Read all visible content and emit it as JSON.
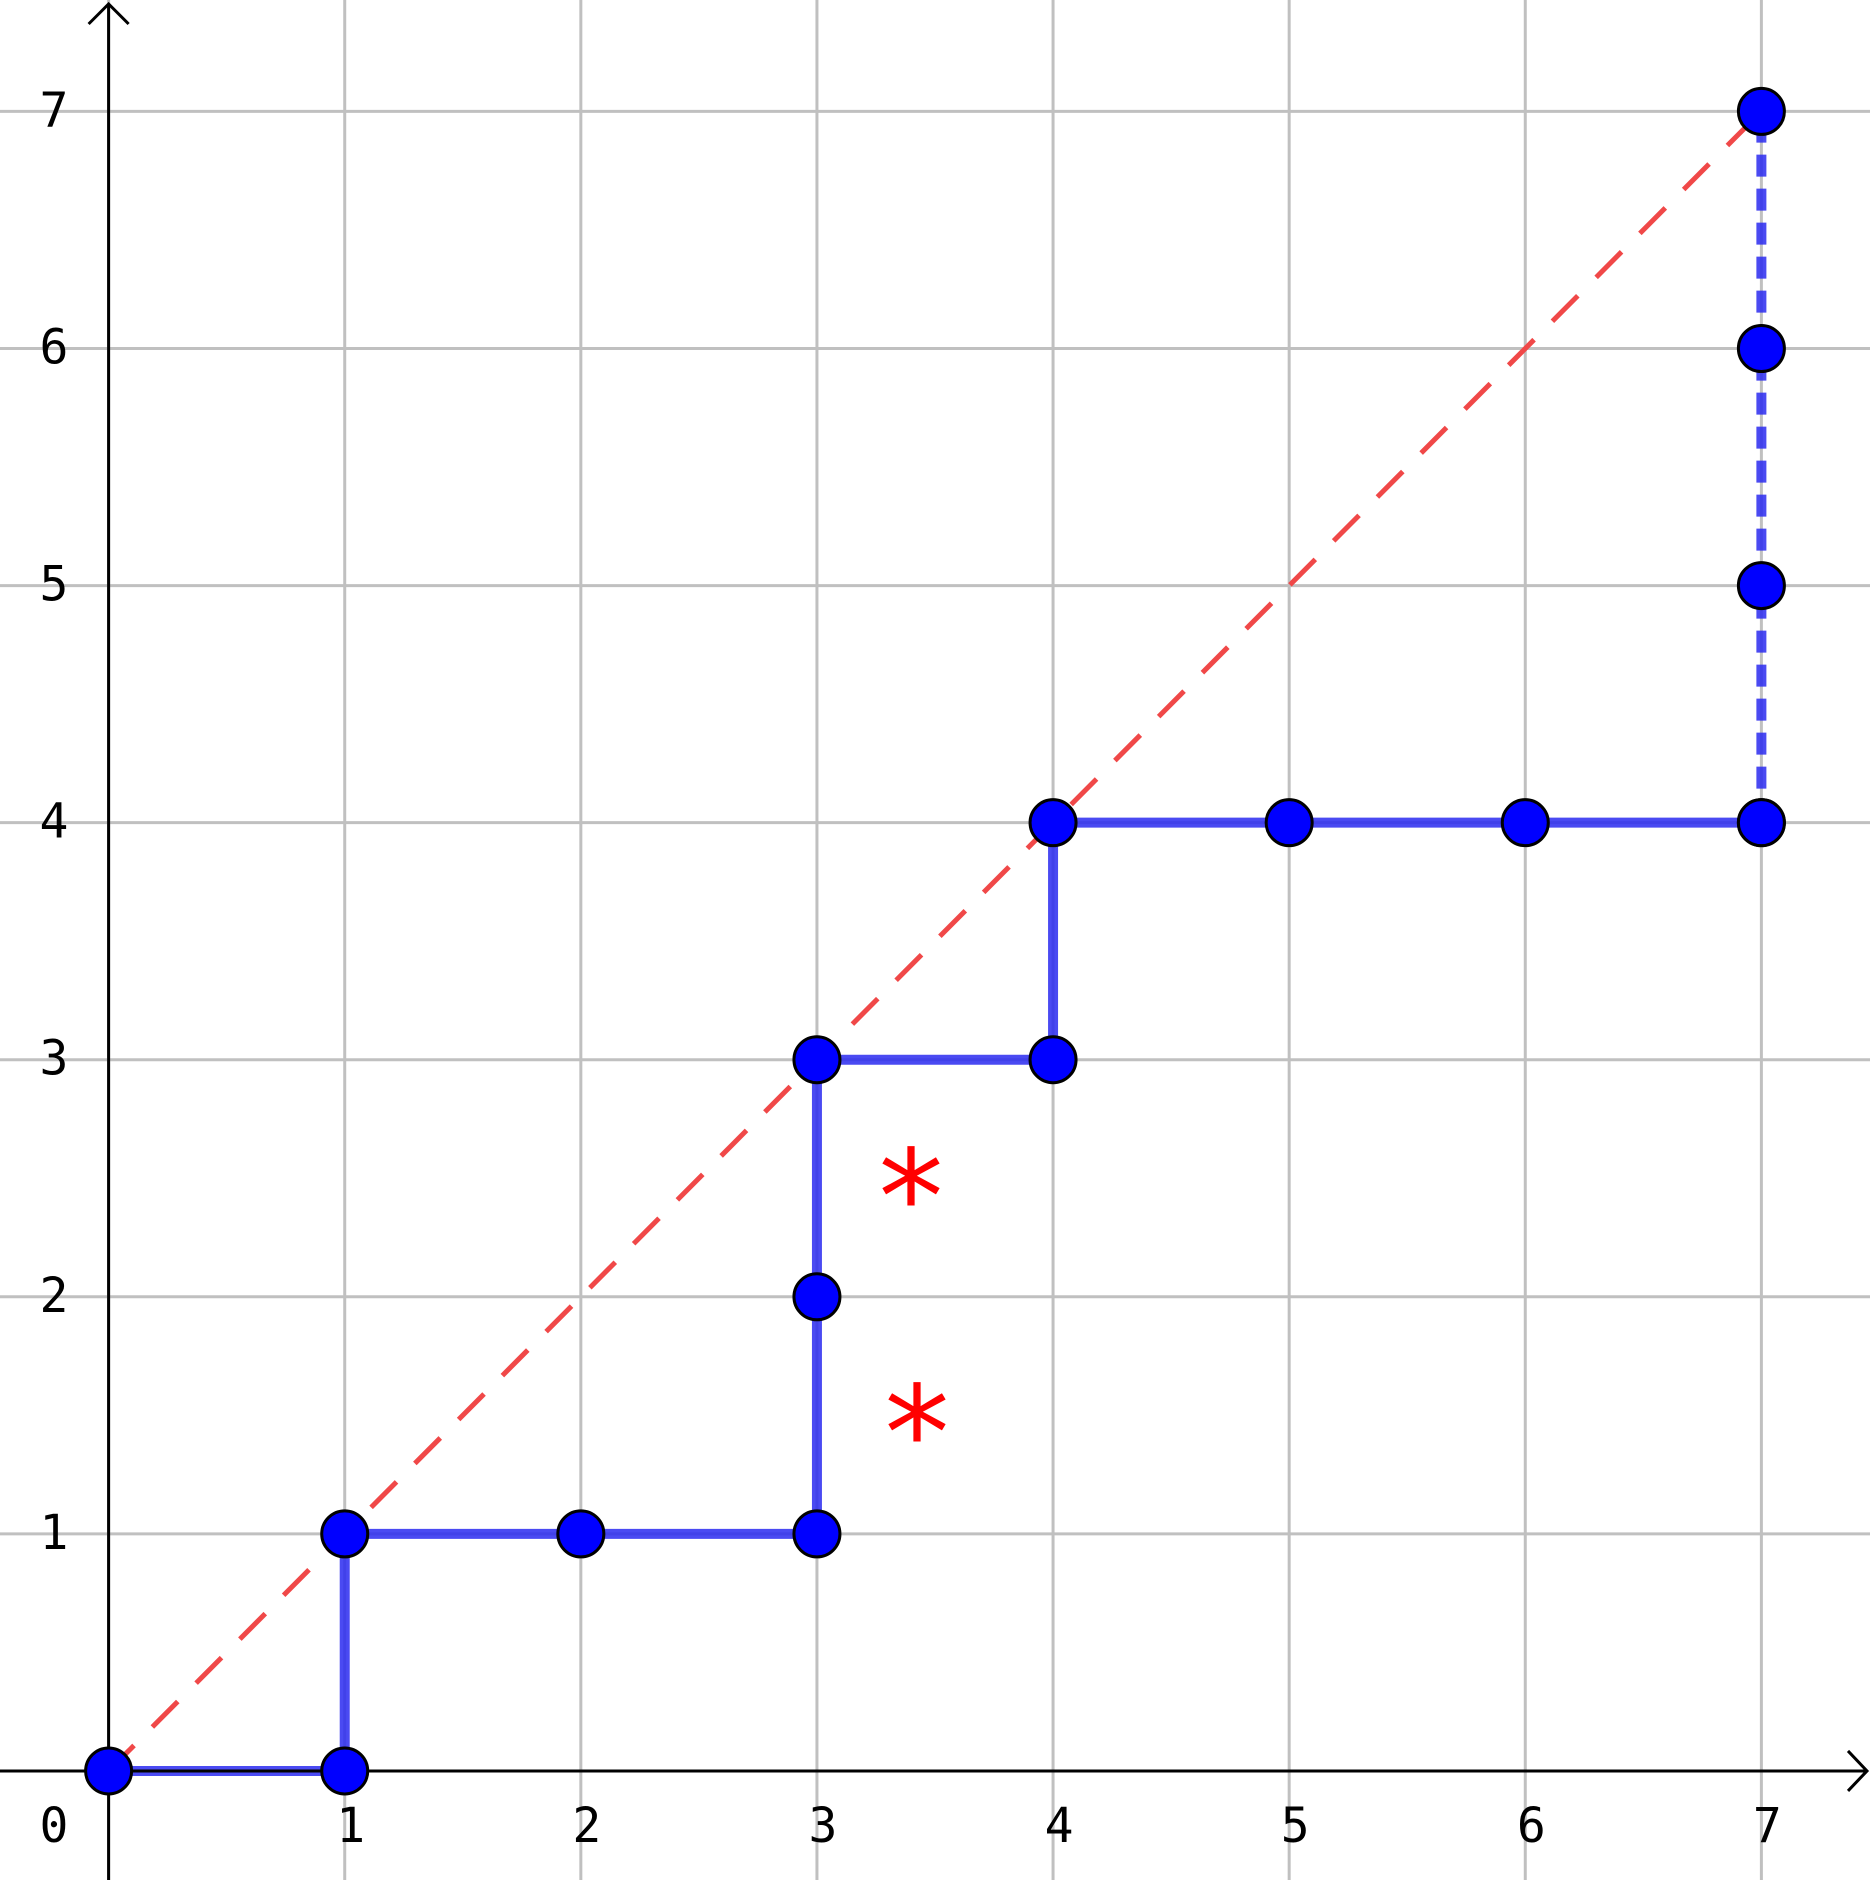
{
  "chart_data": {
    "type": "line",
    "xlim": [
      -0.46,
      7.46
    ],
    "ylim": [
      -0.46,
      7.47
    ],
    "xticks": [
      0,
      1,
      2,
      3,
      4,
      5,
      6,
      7
    ],
    "yticks": [
      1,
      2,
      3,
      4,
      5,
      6,
      7
    ],
    "grid": true,
    "series": [
      {
        "color": "#2a2af0",
        "style": "solid",
        "markers": true,
        "x": [
          0,
          1,
          1,
          2,
          3,
          3,
          3,
          4,
          4,
          5,
          6,
          7
        ],
        "values": [
          0,
          0,
          1,
          1,
          1,
          2,
          3,
          3,
          4,
          4,
          4,
          4
        ]
      },
      {
        "color": "#2a2af0",
        "style": "dashed",
        "markers": true,
        "x": [
          7,
          7,
          7,
          7
        ],
        "values": [
          4,
          5,
          6,
          7
        ]
      },
      {
        "color": "#f04848",
        "style": "dashed",
        "markers": false,
        "x": [
          0,
          7
        ],
        "values": [
          0,
          7
        ]
      }
    ],
    "marker_color": "#0000ff",
    "annotations": [
      "*",
      "*"
    ]
  }
}
